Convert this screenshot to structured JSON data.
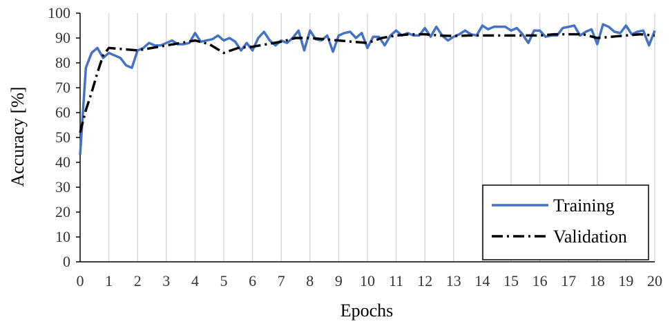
{
  "chart_data": {
    "type": "line",
    "title": "",
    "xlabel": "Epochs",
    "ylabel": "Accuracy [%]",
    "xlim": [
      0,
      20
    ],
    "ylim": [
      0,
      100
    ],
    "xticks": [
      "0",
      "1",
      "2",
      "3",
      "4",
      "5",
      "6",
      "7",
      "8",
      "9",
      "10",
      "11",
      "12",
      "13",
      "14",
      "15",
      "16",
      "17",
      "18",
      "19",
      "20"
    ],
    "yticks": [
      "0",
      "10",
      "20",
      "30",
      "40",
      "50",
      "60",
      "70",
      "80",
      "90",
      "100"
    ],
    "grid": "vertical",
    "legend_position": "bottom-right",
    "series": [
      {
        "name": "Training",
        "color": "#4472C4",
        "style": "solid",
        "x": [
          0,
          0.2,
          0.4,
          0.6,
          0.8,
          1.0,
          1.2,
          1.4,
          1.6,
          1.8,
          2.0,
          2.2,
          2.4,
          2.6,
          2.8,
          3.0,
          3.2,
          3.4,
          3.6,
          3.8,
          4.0,
          4.2,
          4.4,
          4.6,
          4.8,
          5.0,
          5.2,
          5.4,
          5.6,
          5.8,
          6.0,
          6.2,
          6.4,
          6.6,
          6.8,
          7.0,
          7.2,
          7.4,
          7.6,
          7.8,
          8.0,
          8.2,
          8.4,
          8.6,
          8.8,
          9.0,
          9.2,
          9.4,
          9.6,
          9.8,
          10.0,
          10.2,
          10.4,
          10.6,
          10.8,
          11.0,
          11.2,
          11.4,
          11.6,
          11.8,
          12.0,
          12.2,
          12.4,
          12.6,
          12.8,
          13.0,
          13.2,
          13.4,
          13.6,
          13.8,
          14.0,
          14.2,
          14.4,
          14.6,
          14.8,
          15.0,
          15.2,
          15.4,
          15.6,
          15.8,
          16.0,
          16.2,
          16.4,
          16.6,
          16.8,
          17.0,
          17.2,
          17.4,
          17.6,
          17.8,
          18.0,
          18.2,
          18.4,
          18.6,
          18.8,
          19.0,
          19.2,
          19.4,
          19.6,
          19.8,
          20.0
        ],
        "values": [
          43,
          78,
          84,
          86,
          82,
          84,
          83,
          82,
          79,
          78,
          85,
          86,
          88,
          87,
          87,
          88,
          89,
          87.5,
          87.5,
          88,
          92,
          88.5,
          89,
          89.5,
          91,
          89,
          90,
          88.5,
          85,
          88,
          85,
          90,
          92.5,
          89,
          87,
          89,
          88,
          90,
          93,
          85,
          93,
          89.5,
          89,
          91,
          84.5,
          91,
          92,
          92.5,
          90,
          92,
          86,
          90.5,
          90.5,
          87,
          91,
          93,
          91,
          92,
          91,
          91,
          94,
          90.5,
          94.5,
          91,
          89,
          90.5,
          91.5,
          93,
          91.5,
          91,
          95,
          93.5,
          94.5,
          94.5,
          94.5,
          93,
          94,
          91.5,
          88,
          93,
          93,
          90.5,
          91,
          91,
          94,
          94.5,
          95,
          91,
          92.5,
          93.5,
          87.5,
          95.5,
          94.5,
          92.5,
          92,
          95,
          91.5,
          92.5,
          93,
          87,
          93
        ]
      },
      {
        "name": "Validation",
        "color": "#000000",
        "style": "dash-dot",
        "x": [
          0,
          0.2,
          0.4,
          0.6,
          0.8,
          1.0,
          1.5,
          2.0,
          2.5,
          3.0,
          3.5,
          4.0,
          4.5,
          5.0,
          5.5,
          6.0,
          6.5,
          7.0,
          7.5,
          8.0,
          8.5,
          9.0,
          9.5,
          10.0,
          10.5,
          11.0,
          11.5,
          12.0,
          12.5,
          13.0,
          13.5,
          14.0,
          14.5,
          15.0,
          15.5,
          16.0,
          16.5,
          17.0,
          17.5,
          18.0,
          18.5,
          19.0,
          19.5,
          20.0
        ],
        "values": [
          52,
          61,
          68,
          76,
          83,
          86,
          85.5,
          85,
          86,
          87,
          88,
          89,
          87.5,
          84,
          86,
          86.5,
          87.5,
          88.5,
          90,
          90,
          89.5,
          89,
          88.5,
          88,
          90,
          91,
          91.5,
          91.5,
          91,
          90.8,
          91,
          91,
          91,
          91,
          91,
          91,
          91.5,
          91.5,
          91.5,
          90,
          90.5,
          91,
          91.5,
          91
        ]
      }
    ]
  }
}
